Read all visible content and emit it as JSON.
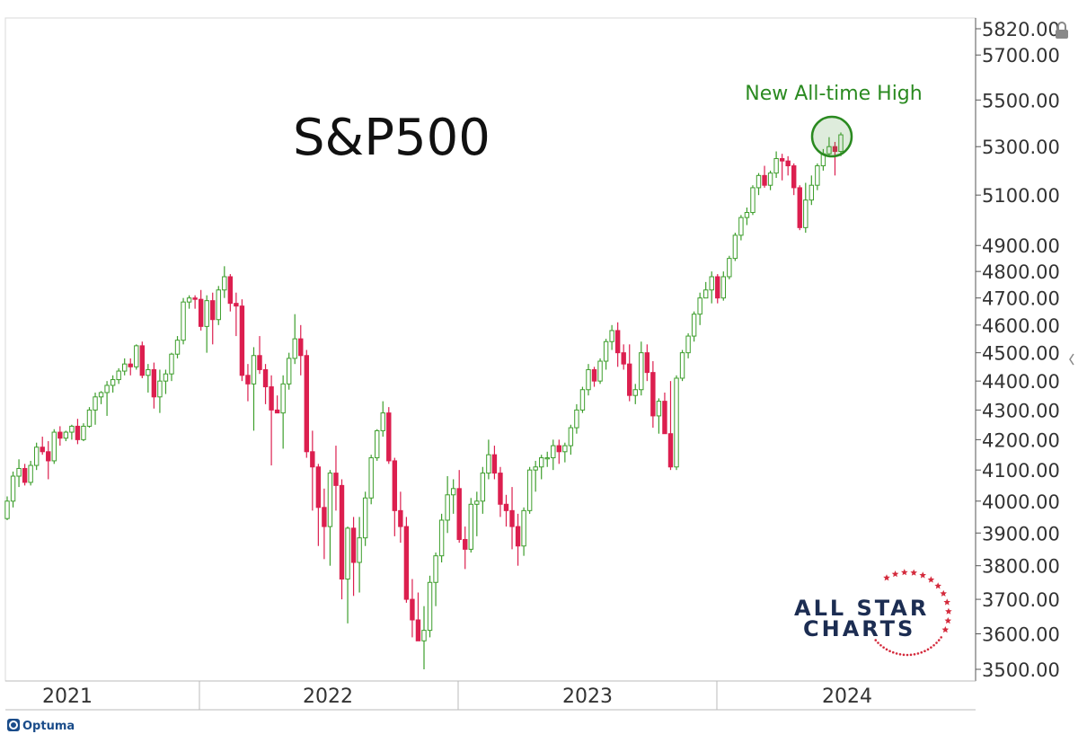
{
  "chart_data": {
    "type": "candlestick",
    "title": "S&P500",
    "scale": "log",
    "ylim": [
      3480,
      5830
    ],
    "y_ticks": [
      "5820.00",
      "5700.00",
      "5500.00",
      "5300.00",
      "5100.00",
      "4900.00",
      "4800.00",
      "4700.00",
      "4600.00",
      "4500.00",
      "4400.00",
      "4300.00",
      "4200.00",
      "4100.00",
      "4000.00",
      "3900.00",
      "3800.00",
      "3700.00",
      "3600.00",
      "3500.00"
    ],
    "x_ticks": [
      "2021",
      "2022",
      "2023",
      "2024"
    ],
    "annotation": "New All-time High",
    "series": [
      {
        "x": "2021",
        "v": [
          [
            3945,
            4015,
            3940,
            4000
          ],
          [
            4000,
            4095,
            3980,
            4080
          ],
          [
            4080,
            4135,
            4045,
            4105
          ],
          [
            4105,
            4120,
            4050,
            4060
          ],
          [
            4060,
            4130,
            4050,
            4115
          ],
          [
            4115,
            4190,
            4100,
            4175
          ],
          [
            4175,
            4210,
            4150,
            4160
          ],
          [
            4160,
            4195,
            4070,
            4130
          ],
          [
            4130,
            4235,
            4120,
            4225
          ],
          [
            4225,
            4245,
            4180,
            4205
          ],
          [
            4205,
            4230,
            4195,
            4225
          ],
          [
            4225,
            4250,
            4200,
            4245
          ],
          [
            4245,
            4270,
            4185,
            4200
          ],
          [
            4200,
            4255,
            4195,
            4245
          ],
          [
            4245,
            4310,
            4240,
            4300
          ],
          [
            4300,
            4360,
            4250,
            4345
          ],
          [
            4345,
            4365,
            4320,
            4360
          ],
          [
            4360,
            4400,
            4280,
            4385
          ],
          [
            4385,
            4420,
            4360,
            4405
          ],
          [
            4405,
            4445,
            4390,
            4435
          ],
          [
            4435,
            4480,
            4420,
            4460
          ],
          [
            4460,
            4480,
            4420,
            4450
          ],
          [
            4450,
            4530,
            4440,
            4525
          ],
          [
            4525,
            4540,
            4410,
            4420
          ],
          [
            4420,
            4460,
            4360,
            4440
          ],
          [
            4440,
            4465,
            4305,
            4345
          ],
          [
            4345,
            4440,
            4290,
            4400
          ],
          [
            4400,
            4440,
            4355,
            4425
          ],
          [
            4425,
            4500,
            4400,
            4495
          ],
          [
            4495,
            4560,
            4480,
            4545
          ],
          [
            4545,
            4700,
            4530,
            4685
          ],
          [
            4685,
            4710,
            4660,
            4700
          ],
          [
            4700,
            4710,
            4660,
            4695
          ],
          [
            4695,
            4730,
            4580,
            4595
          ],
          [
            4595,
            4710,
            4500,
            4690
          ],
          [
            4690,
            4720,
            4530,
            4620
          ],
          [
            4620,
            4745,
            4600,
            4730
          ],
          [
            4730,
            4820,
            4700,
            4780
          ],
          [
            4780,
            4790,
            4650,
            4680
          ]
        ]
      },
      {
        "x": "2022",
        "v": [
          [
            4680,
            4720,
            4560,
            4670
          ],
          [
            4670,
            4695,
            4400,
            4420
          ],
          [
            4420,
            4460,
            4330,
            4390
          ],
          [
            4390,
            4520,
            4230,
            4490
          ],
          [
            4490,
            4560,
            4425,
            4440
          ],
          [
            4440,
            4460,
            4320,
            4380
          ],
          [
            4380,
            4420,
            4115,
            4300
          ],
          [
            4300,
            4350,
            4290,
            4290
          ],
          [
            4290,
            4420,
            4170,
            4390
          ],
          [
            4390,
            4500,
            4370,
            4480
          ],
          [
            4480,
            4640,
            4460,
            4550
          ],
          [
            4550,
            4600,
            4420,
            4490
          ],
          [
            4490,
            4510,
            4140,
            4160
          ],
          [
            4160,
            4230,
            3970,
            4110
          ],
          [
            4110,
            4120,
            3860,
            3980
          ],
          [
            3980,
            4040,
            3820,
            3920
          ],
          [
            3920,
            4100,
            3800,
            4090
          ],
          [
            4090,
            4180,
            3970,
            4050
          ],
          [
            4050,
            4070,
            3700,
            3760
          ],
          [
            3760,
            3920,
            3630,
            3915
          ],
          [
            3915,
            3950,
            3710,
            3810
          ],
          [
            3810,
            3950,
            3720,
            3885
          ],
          [
            3885,
            4030,
            3860,
            4010
          ],
          [
            4010,
            4150,
            3990,
            4140
          ],
          [
            4140,
            4235,
            4130,
            4230
          ],
          [
            4230,
            4330,
            4210,
            4290
          ],
          [
            4290,
            4310,
            4120,
            4130
          ],
          [
            4130,
            4140,
            3890,
            3970
          ],
          [
            3970,
            4030,
            3870,
            3920
          ],
          [
            3920,
            3950,
            3690,
            3700
          ],
          [
            3700,
            3760,
            3590,
            3640
          ],
          [
            3640,
            3720,
            3600,
            3580
          ],
          [
            3580,
            3680,
            3500,
            3610
          ],
          [
            3610,
            3770,
            3590,
            3750
          ],
          [
            3750,
            3840,
            3680,
            3830
          ],
          [
            3830,
            3960,
            3810,
            3940
          ],
          [
            3940,
            4080,
            3900,
            4020
          ],
          [
            4020,
            4070,
            3960,
            4040
          ],
          [
            4040,
            4100,
            3870,
            3880
          ]
        ]
      },
      {
        "x": "2023",
        "v": [
          [
            3880,
            3920,
            3790,
            3850
          ],
          [
            3850,
            4010,
            3840,
            3990
          ],
          [
            3990,
            4030,
            3890,
            4000
          ],
          [
            4000,
            4110,
            3960,
            4090
          ],
          [
            4090,
            4200,
            4070,
            4150
          ],
          [
            4150,
            4180,
            4070,
            4090
          ],
          [
            4090,
            4110,
            3950,
            3990
          ],
          [
            3990,
            4020,
            3920,
            3970
          ],
          [
            3970,
            4045,
            3850,
            3920
          ],
          [
            3920,
            3960,
            3800,
            3860
          ],
          [
            3860,
            3980,
            3830,
            3970
          ],
          [
            3970,
            4110,
            3960,
            4100
          ],
          [
            4100,
            4130,
            4030,
            4110
          ],
          [
            4110,
            4150,
            4070,
            4140
          ],
          [
            4140,
            4160,
            4110,
            4140
          ],
          [
            4140,
            4200,
            4100,
            4180
          ],
          [
            4180,
            4200,
            4120,
            4160
          ],
          [
            4160,
            4190,
            4125,
            4180
          ],
          [
            4180,
            4250,
            4150,
            4240
          ],
          [
            4240,
            4320,
            4220,
            4300
          ],
          [
            4300,
            4380,
            4290,
            4370
          ],
          [
            4370,
            4460,
            4350,
            4440
          ],
          [
            4440,
            4450,
            4380,
            4400
          ],
          [
            4400,
            4480,
            4390,
            4470
          ],
          [
            4470,
            4550,
            4440,
            4540
          ],
          [
            4540,
            4600,
            4510,
            4580
          ],
          [
            4580,
            4610,
            4450,
            4500
          ],
          [
            4500,
            4530,
            4440,
            4460
          ],
          [
            4460,
            4530,
            4330,
            4350
          ],
          [
            4350,
            4390,
            4320,
            4370
          ],
          [
            4370,
            4540,
            4350,
            4500
          ],
          [
            4500,
            4530,
            4400,
            4430
          ],
          [
            4430,
            4470,
            4240,
            4280
          ],
          [
            4280,
            4340,
            4220,
            4330
          ],
          [
            4330,
            4360,
            4220,
            4220
          ],
          [
            4220,
            4400,
            4100,
            4110
          ],
          [
            4110,
            4420,
            4100,
            4410
          ],
          [
            4410,
            4510,
            4400,
            4500
          ],
          [
            4500,
            4570,
            4480,
            4560
          ]
        ]
      },
      {
        "x": "2024",
        "v": [
          [
            4560,
            4650,
            4540,
            4640
          ],
          [
            4640,
            4720,
            4600,
            4700
          ],
          [
            4700,
            4760,
            4700,
            4730
          ],
          [
            4730,
            4800,
            4680,
            4780
          ],
          [
            4780,
            4790,
            4680,
            4700
          ],
          [
            4700,
            4800,
            4690,
            4780
          ],
          [
            4780,
            4860,
            4770,
            4850
          ],
          [
            4850,
            4950,
            4840,
            4940
          ],
          [
            4940,
            5020,
            4920,
            5010
          ],
          [
            5010,
            5050,
            4980,
            5030
          ],
          [
            5030,
            5140,
            5020,
            5130
          ],
          [
            5130,
            5190,
            5100,
            5180
          ],
          [
            5180,
            5220,
            5130,
            5140
          ],
          [
            5140,
            5200,
            5120,
            5190
          ],
          [
            5190,
            5280,
            5170,
            5250
          ],
          [
            5250,
            5270,
            5160,
            5240
          ],
          [
            5240,
            5260,
            5180,
            5220
          ],
          [
            5220,
            5230,
            5100,
            5130
          ],
          [
            5130,
            5140,
            4960,
            4970
          ],
          [
            4970,
            5150,
            4950,
            5080
          ],
          [
            5080,
            5180,
            5060,
            5140
          ],
          [
            5140,
            5230,
            5120,
            5220
          ],
          [
            5220,
            5290,
            5200,
            5270
          ],
          [
            5270,
            5340,
            5260,
            5300
          ],
          [
            5300,
            5320,
            5180,
            5280
          ],
          [
            5280,
            5360,
            5260,
            5350
          ]
        ]
      }
    ]
  },
  "logo": {
    "line1": "ALL STAR",
    "line2": "CHARTS"
  },
  "brand": "Optuma",
  "colors": {
    "up": "#3d9e2c",
    "down": "#dc1f4f",
    "annotation": "#2a8a20",
    "logo": "#1c2d52",
    "star": "#d42a3c"
  }
}
